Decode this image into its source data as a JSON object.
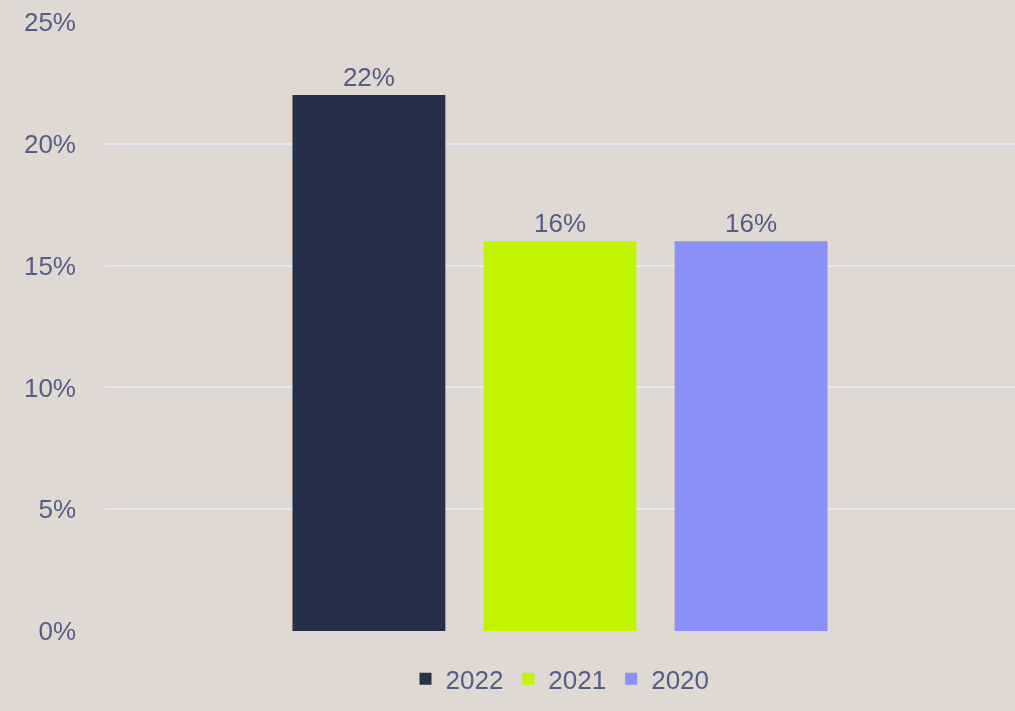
{
  "chart_data": {
    "type": "bar",
    "categories": [
      null
    ],
    "series": [
      {
        "name": "2022",
        "color": "#263149",
        "values": [
          22
        ],
        "value_labels": [
          "22%"
        ]
      },
      {
        "name": "2021",
        "color": "#c0f400",
        "values": [
          16
        ],
        "value_labels": [
          "16%"
        ]
      },
      {
        "name": "2020",
        "color": "#8a90f5",
        "values": [
          16
        ],
        "value_labels": [
          "16%"
        ]
      }
    ],
    "ylim": [
      0,
      25
    ],
    "yticks": [
      {
        "value": 0,
        "label": "0%"
      },
      {
        "value": 5,
        "label": "5%"
      },
      {
        "value": 10,
        "label": "10%"
      },
      {
        "value": 15,
        "label": "15%"
      },
      {
        "value": 20,
        "label": "20%"
      },
      {
        "value": 25,
        "label": "25%"
      }
    ],
    "grid": "y",
    "legend": "bottom"
  }
}
